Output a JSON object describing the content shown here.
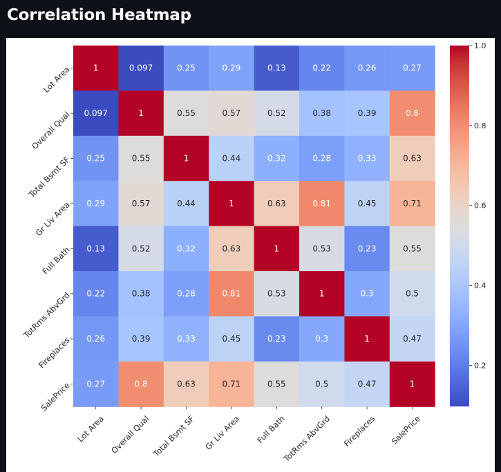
{
  "page": {
    "title": "Correlation Heatmap"
  },
  "chart_data": {
    "type": "heatmap",
    "title": "",
    "xlabel": "",
    "ylabel": "",
    "colormap": "coolwarm",
    "colors": {
      "low": "#3b4cc0",
      "mid": "#dddddd",
      "high": "#b40426",
      "annotation_light": "#ffffff",
      "annotation_dark": "#262626"
    },
    "x_categories": [
      "Lot Area",
      "Overall Qual",
      "Total Bsmt SF",
      "Gr Liv Area",
      "Full Bath",
      "TotRms AbvGrd",
      "Fireplaces",
      "SalePrice"
    ],
    "y_categories": [
      "Lot Area",
      "Overall Qual",
      "Total Bsmt SF",
      "Gr Liv Area",
      "Full Bath",
      "TotRms AbvGrd",
      "Fireplaces",
      "SalePrice"
    ],
    "values": [
      [
        1,
        0.097,
        0.25,
        0.29,
        0.13,
        0.22,
        0.26,
        0.27
      ],
      [
        0.097,
        1,
        0.55,
        0.57,
        0.52,
        0.38,
        0.39,
        0.8
      ],
      [
        0.25,
        0.55,
        1,
        0.44,
        0.32,
        0.28,
        0.33,
        0.63
      ],
      [
        0.29,
        0.57,
        0.44,
        1,
        0.63,
        0.81,
        0.45,
        0.71
      ],
      [
        0.13,
        0.52,
        0.32,
        0.63,
        1,
        0.53,
        0.23,
        0.55
      ],
      [
        0.22,
        0.38,
        0.28,
        0.81,
        0.53,
        1,
        0.3,
        0.5
      ],
      [
        0.26,
        0.39,
        0.33,
        0.45,
        0.23,
        0.3,
        1,
        0.47
      ],
      [
        0.27,
        0.8,
        0.63,
        0.71,
        0.55,
        0.5,
        0.47,
        1
      ]
    ],
    "annotations": [
      [
        "1",
        "0.097",
        "0.25",
        "0.29",
        "0.13",
        "0.22",
        "0.26",
        "0.27"
      ],
      [
        "0.097",
        "1",
        "0.55",
        "0.57",
        "0.52",
        "0.38",
        "0.39",
        "0.8"
      ],
      [
        "0.25",
        "0.55",
        "1",
        "0.44",
        "0.32",
        "0.28",
        "0.33",
        "0.63"
      ],
      [
        "0.29",
        "0.57",
        "0.44",
        "1",
        "0.63",
        "0.81",
        "0.45",
        "0.71"
      ],
      [
        "0.13",
        "0.52",
        "0.32",
        "0.63",
        "1",
        "0.53",
        "0.23",
        "0.55"
      ],
      [
        "0.22",
        "0.38",
        "0.28",
        "0.81",
        "0.53",
        "1",
        "0.3",
        "0.5"
      ],
      [
        "0.26",
        "0.39",
        "0.33",
        "0.45",
        "0.23",
        "0.3",
        "1",
        "0.47"
      ],
      [
        "0.27",
        "0.8",
        "0.63",
        "0.71",
        "0.55",
        "0.5",
        "0.47",
        "1"
      ]
    ],
    "colorbar": {
      "range": [
        0.097,
        1.0
      ],
      "ticks": [
        0.2,
        0.4,
        0.6,
        0.8,
        1.0
      ],
      "tick_labels": [
        "0.2",
        "0.4",
        "0.6",
        "0.8",
        "1.0"
      ]
    },
    "grid": false,
    "legend": "colorbar-right"
  }
}
